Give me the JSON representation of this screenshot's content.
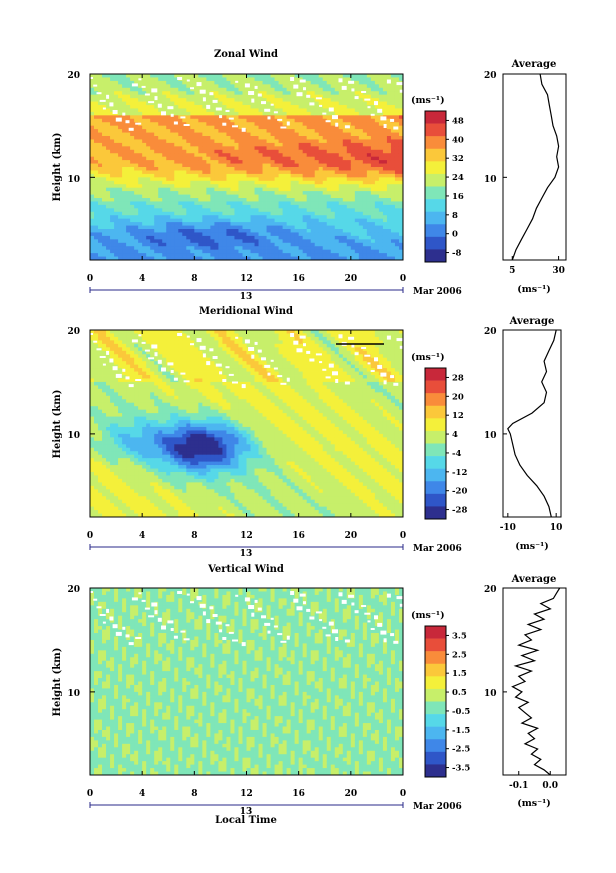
{
  "chart_data": [
    {
      "type": "heatmap",
      "title": "Zonal Wind",
      "ylabel": "Height (km)",
      "xlabel": "",
      "x_ticks": [
        "0",
        "4",
        "8",
        "12",
        "16",
        "20",
        "0"
      ],
      "y_ticks": [
        "20",
        "10"
      ],
      "xlim": [
        0,
        24
      ],
      "ylim": [
        2,
        20
      ],
      "date_marker": "13",
      "date_label": "Mar 2006",
      "colorbar": {
        "unit": "(ms⁻¹)",
        "ticks": [
          "48",
          "40",
          "32",
          "24",
          "16",
          "8",
          "0",
          "-8"
        ],
        "min": -12,
        "max": 52,
        "colors": [
          "#2d2f8e",
          "#2f56c8",
          "#3f87e8",
          "#4cb6f0",
          "#56d8e8",
          "#7fe6b8",
          "#c7ef6a",
          "#f4f03a",
          "#fbc83a",
          "#f98c3a",
          "#e84e3a",
          "#c8283a"
        ]
      },
      "features": "Wind increasing with height; maximum near 11–13 km (~48 ms⁻¹) in late local time; weak negative values near 4–6 km",
      "profile": {
        "title": "Average",
        "x_ticks": [
          "5",
          "30"
        ],
        "xlim": [
          0,
          34
        ],
        "unit": "(ms⁻¹)",
        "y_ticks": [
          "20",
          "10"
        ],
        "heights": [
          2,
          3,
          4,
          5,
          6,
          7,
          8,
          9,
          10,
          11,
          12,
          13,
          14,
          15,
          16,
          17,
          18,
          19,
          20
        ],
        "values": [
          5,
          7,
          10,
          13,
          16,
          18,
          21,
          24,
          28,
          30,
          29,
          30,
          29,
          27,
          26,
          25,
          24,
          21,
          20
        ]
      }
    },
    {
      "type": "heatmap",
      "title": "Meridional Wind",
      "ylabel": "Height (km)",
      "xlabel": "",
      "x_ticks": [
        "0",
        "4",
        "8",
        "12",
        "16",
        "20",
        "0"
      ],
      "y_ticks": [
        "20",
        "10"
      ],
      "xlim": [
        0,
        24
      ],
      "ylim": [
        2,
        20
      ],
      "date_marker": "13",
      "date_label": "Mar 2006",
      "colorbar": {
        "unit": "(ms⁻¹)",
        "ticks": [
          "28",
          "20",
          "12",
          "4",
          "-4",
          "-12",
          "-20",
          "-28"
        ],
        "min": -32,
        "max": 32,
        "colors": [
          "#2d2f8e",
          "#2f56c8",
          "#3f87e8",
          "#4cb6f0",
          "#56d8e8",
          "#7fe6b8",
          "#c7ef6a",
          "#f4f03a",
          "#fbc83a",
          "#f98c3a",
          "#e84e3a",
          "#c8283a"
        ]
      },
      "features": "Strong southward (negative) wind minimum around 8–11 km between 4 and 12 local time; weak positive values elsewhere",
      "profile": {
        "title": "Average",
        "x_ticks": [
          "-10",
          "10"
        ],
        "xlim": [
          -12,
          12
        ],
        "unit": "(ms⁻¹)",
        "y_ticks": [
          "20",
          "10"
        ],
        "heights": [
          2,
          3,
          4,
          5,
          6,
          7,
          8,
          9,
          10,
          10.5,
          11,
          12,
          13,
          14,
          15,
          16,
          17,
          18,
          19,
          20
        ],
        "values": [
          8,
          7,
          5,
          2,
          -2,
          -5,
          -7,
          -8,
          -9,
          -10,
          -8,
          0,
          5,
          6,
          4,
          6,
          5,
          7,
          9,
          10
        ]
      }
    },
    {
      "type": "heatmap",
      "title": "Vertical Wind",
      "ylabel": "Height (km)",
      "xlabel": "Local Time",
      "x_ticks": [
        "0",
        "4",
        "8",
        "12",
        "16",
        "20",
        "0"
      ],
      "y_ticks": [
        "20",
        "10"
      ],
      "xlim": [
        0,
        24
      ],
      "ylim": [
        2,
        20
      ],
      "date_marker": "13",
      "date_label": "Mar 2006",
      "colorbar": {
        "unit": "(ms⁻¹)",
        "ticks": [
          "3.5",
          "2.5",
          "1.5",
          "0.5",
          "-0.5",
          "-1.5",
          "-2.5",
          "-3.5"
        ],
        "min": -4,
        "max": 4,
        "colors": [
          "#2d2f8e",
          "#2f56c8",
          "#3f87e8",
          "#4cb6f0",
          "#56d8e8",
          "#7fe6b8",
          "#c7ef6a",
          "#f4f03a",
          "#fbc83a",
          "#f98c3a",
          "#e84e3a",
          "#c8283a"
        ]
      },
      "features": "Mostly near-zero values (cyan) at all heights and times",
      "profile": {
        "title": "Average",
        "x_ticks": [
          "-0.1",
          "0.0"
        ],
        "xlim": [
          -0.15,
          0.05
        ],
        "unit": "(ms⁻¹)",
        "y_ticks": [
          "20",
          "10"
        ],
        "heights": [
          2,
          2.5,
          3,
          3.5,
          4,
          4.5,
          5,
          5.5,
          6,
          6.5,
          7,
          7.5,
          8,
          8.5,
          9,
          9.5,
          10,
          10.5,
          11,
          11.5,
          12,
          12.5,
          13,
          13.5,
          14,
          14.5,
          15,
          15.5,
          16,
          16.5,
          17,
          17.5,
          18,
          18.5,
          19,
          19.5,
          20
        ],
        "values": [
          0.0,
          -0.02,
          -0.05,
          -0.03,
          -0.06,
          -0.04,
          -0.08,
          -0.05,
          -0.07,
          -0.04,
          -0.09,
          -0.06,
          -0.08,
          -0.1,
          -0.07,
          -0.11,
          -0.09,
          -0.12,
          -0.08,
          -0.1,
          -0.06,
          -0.11,
          -0.05,
          -0.09,
          -0.04,
          -0.1,
          -0.06,
          -0.08,
          -0.03,
          -0.07,
          -0.02,
          -0.05,
          0.0,
          -0.03,
          0.01,
          0.02,
          0.03
        ]
      }
    }
  ]
}
